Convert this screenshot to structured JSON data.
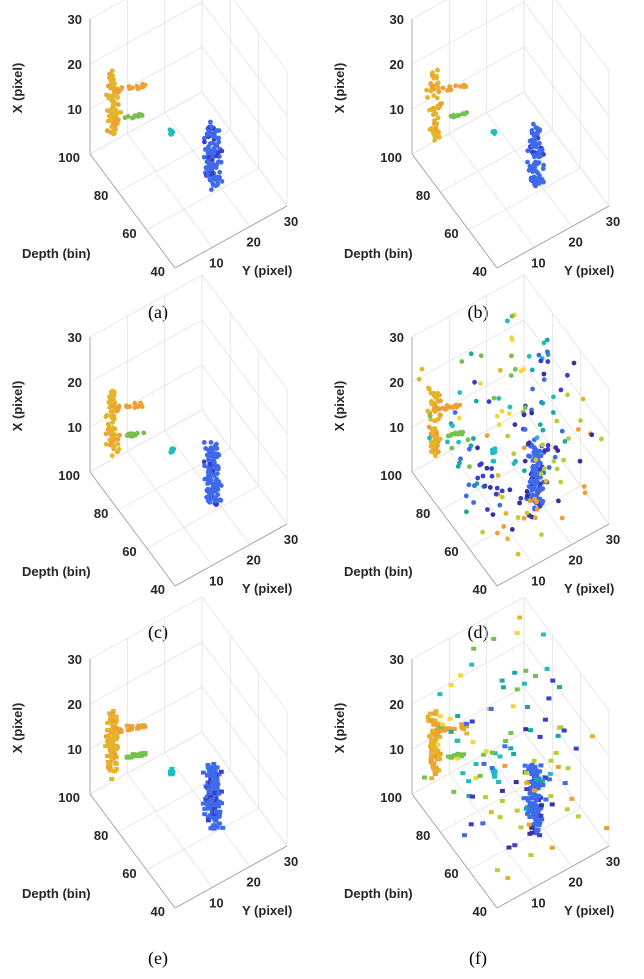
{
  "figure": {
    "panels": [
      {
        "caption": "(a)"
      },
      {
        "caption": "(b)"
      },
      {
        "caption": "(c)"
      },
      {
        "caption": "(d)"
      },
      {
        "caption": "(e)"
      },
      {
        "caption": "(f)"
      }
    ]
  },
  "chart_data": [
    {
      "id": "a",
      "type": "scatter",
      "caption": "(a)",
      "xlabel": "X (pixel)",
      "ylabel": "Y (pixel)",
      "zlabel": "Depth (bin)",
      "x_ticks": [
        "10",
        "20",
        "30"
      ],
      "y_ticks": [
        "10",
        "20",
        "30"
      ],
      "depth_ticks": [
        "100",
        "80",
        "60",
        "40"
      ],
      "colormap": "parula",
      "points": "dense",
      "clusters": [
        {
          "name": "",
          "color": "#e6b92c",
          "depth": [
            85,
            98
          ],
          "x": [
            8,
            22
          ],
          "y": [
            2,
            6
          ]
        },
        {
          "name": "",
          "color": "#77c24b",
          "depth": [
            83,
            86
          ],
          "x": [
            12,
            16
          ],
          "y": [
            5,
            7
          ]
        },
        {
          "name": "",
          "color": "#21bcc0",
          "depth": [
            70,
            72
          ],
          "x": [
            11,
            13
          ],
          "y": [
            10,
            12
          ]
        },
        {
          "name": "",
          "color": "#3f6ae8",
          "depth": [
            50,
            65
          ],
          "x": [
            2,
            15
          ],
          "y": [
            15,
            20
          ]
        }
      ]
    },
    {
      "id": "b",
      "type": "scatter",
      "caption": "(b)",
      "xlabel": "X (pixel)",
      "ylabel": "Y (pixel)",
      "zlabel": "Depth (bin)",
      "x_ticks": [
        "10",
        "20",
        "30"
      ],
      "y_ticks": [
        "10",
        "20",
        "30"
      ],
      "depth_ticks": [
        "100",
        "80",
        "60",
        "40"
      ],
      "colormap": "parula",
      "points": "medium"
    },
    {
      "id": "c",
      "type": "scatter",
      "caption": "(c)",
      "xlabel": "X (pixel)",
      "ylabel": "Y (pixel)",
      "zlabel": "Depth (bin)",
      "x_ticks": [
        "10",
        "20",
        "30"
      ],
      "y_ticks": [
        "10",
        "20",
        "30"
      ],
      "depth_ticks": [
        "100",
        "80",
        "60",
        "40"
      ],
      "colormap": "parula",
      "points": "dense"
    },
    {
      "id": "d",
      "type": "scatter",
      "caption": "(d)",
      "xlabel": "X (pixel)",
      "ylabel": "Y (pixel)",
      "zlabel": "Depth (bin)",
      "x_ticks": [
        "10",
        "20",
        "30"
      ],
      "y_ticks": [
        "10",
        "20",
        "30"
      ],
      "depth_ticks": [
        "100",
        "80",
        "60",
        "40"
      ],
      "colormap": "parula",
      "points": "dense_with_noise"
    },
    {
      "id": "e",
      "type": "scatter",
      "caption": "(e)",
      "xlabel": "X (pixel)",
      "ylabel": "Y (pixel)",
      "zlabel": "Depth (bin)",
      "x_ticks": [
        "10",
        "20",
        "30"
      ],
      "y_ticks": [
        "10",
        "20",
        "30"
      ],
      "depth_ticks": [
        "100",
        "80",
        "60",
        "40"
      ],
      "colormap": "parula",
      "points": "surface"
    },
    {
      "id": "f",
      "type": "scatter",
      "caption": "(f)",
      "xlabel": "X (pixel)",
      "ylabel": "Y (pixel)",
      "zlabel": "Depth (bin)",
      "x_ticks": [
        "10",
        "20",
        "30"
      ],
      "y_ticks": [
        "10",
        "20",
        "30"
      ],
      "depth_ticks": [
        "100",
        "80",
        "60",
        "40"
      ],
      "colormap": "parula",
      "points": "surface_with_noise"
    }
  ]
}
